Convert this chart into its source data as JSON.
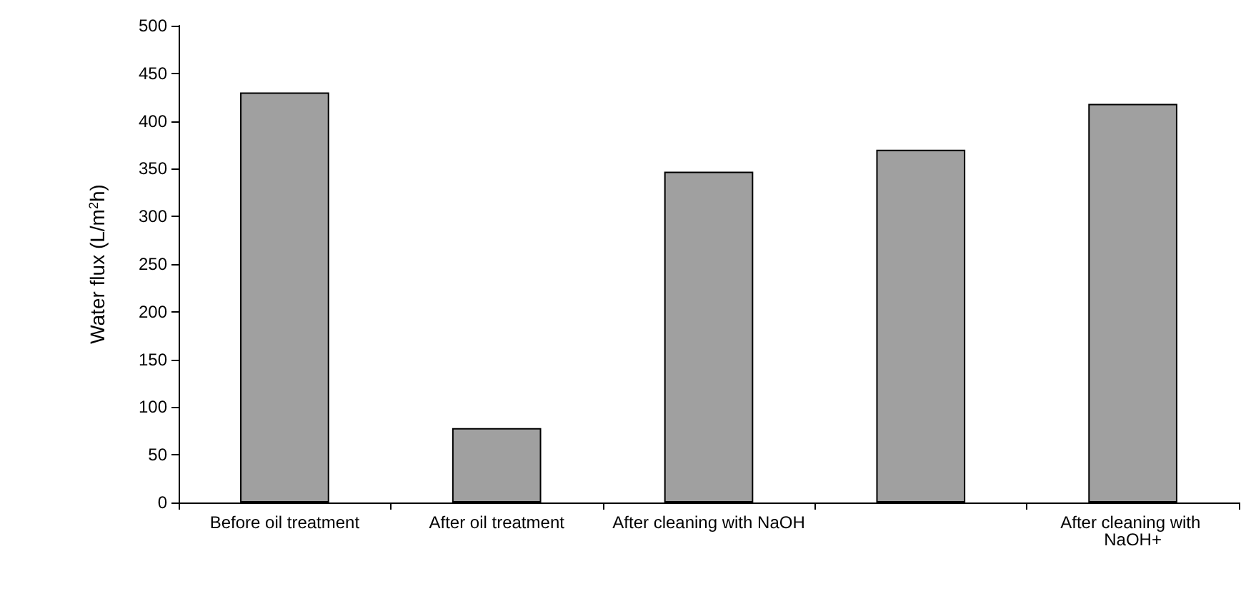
{
  "chart_data": {
    "type": "bar",
    "ylabel": "Water flux (L/m$^{2}$h)",
    "categories": [
      "Before oil treatment",
      "After oil treatment",
      "After cleaning with NaOH",
      null,
      "After cleaning with NaOH+"
    ],
    "values": [
      430,
      78,
      347,
      370,
      418
    ],
    "color": "#a0a0a0",
    "ylim": [
      0,
      500
    ],
    "yticks": [
      0,
      50,
      100,
      150,
      200,
      250,
      300,
      350,
      400,
      450,
      500
    ],
    "grid": false
  }
}
